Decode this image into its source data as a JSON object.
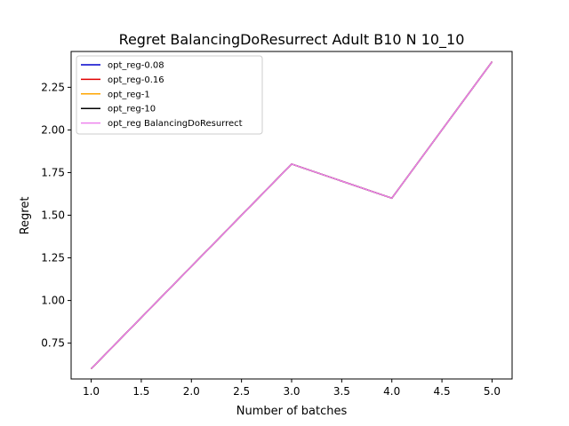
{
  "chart_data": {
    "type": "line",
    "title": "Regret BalancingDoResurrect Adult B10 N 10_10",
    "xlabel": "Number of batches",
    "ylabel": "Regret",
    "x": [
      1,
      2,
      3,
      4,
      5
    ],
    "xlim": [
      0.8,
      5.2
    ],
    "ylim": [
      0.54,
      2.46
    ],
    "xticks": [
      1.0,
      1.5,
      2.0,
      2.5,
      3.0,
      3.5,
      4.0,
      4.5,
      5.0
    ],
    "xtick_labels": [
      "1.0",
      "1.5",
      "2.0",
      "2.5",
      "3.0",
      "3.5",
      "4.0",
      "4.5",
      "5.0"
    ],
    "yticks": [
      0.75,
      1.0,
      1.25,
      1.5,
      1.75,
      2.0,
      2.25
    ],
    "ytick_labels": [
      "0.75",
      "1.00",
      "1.25",
      "1.50",
      "1.75",
      "2.00",
      "2.25"
    ],
    "grid": false,
    "legend_position": "top-left",
    "series": [
      {
        "name": "opt_reg-0.08",
        "color": "#0000cc",
        "values": [
          0.6,
          1.2,
          1.8,
          1.6,
          2.4
        ]
      },
      {
        "name": "opt_reg-0.16",
        "color": "#e00000",
        "values": [
          0.6,
          1.2,
          1.8,
          1.6,
          2.4
        ]
      },
      {
        "name": "opt_reg-1",
        "color": "#ffa500",
        "values": [
          0.6,
          1.2,
          1.8,
          1.6,
          2.4
        ]
      },
      {
        "name": "opt_reg-10",
        "color": "#000000",
        "values": [
          0.6,
          1.2,
          1.8,
          1.6,
          2.4
        ]
      },
      {
        "name": "opt_reg BalancingDoResurrect",
        "color": "#ee82ee",
        "values": [
          0.6,
          1.2,
          1.8,
          1.6,
          2.4
        ]
      }
    ]
  }
}
